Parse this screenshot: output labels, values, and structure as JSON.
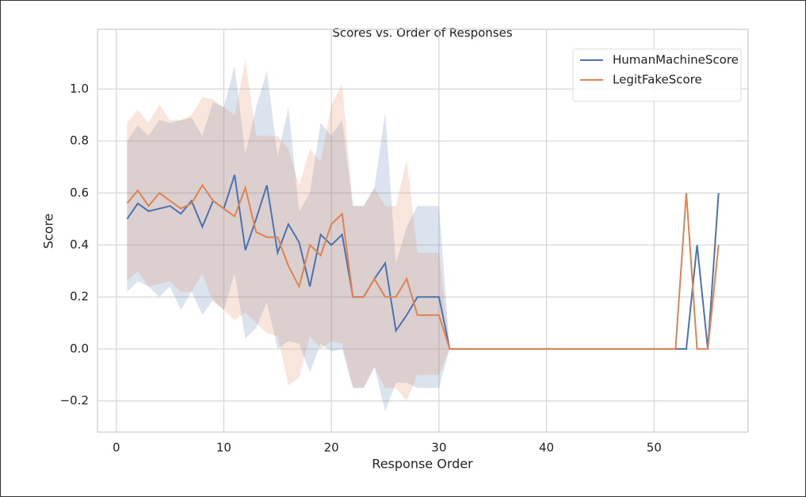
{
  "chart_data": {
    "type": "line",
    "title": "Scores vs. Order of Responses",
    "xlabel": "Response Order",
    "ylabel": "Score",
    "x": [
      1,
      2,
      3,
      4,
      5,
      6,
      7,
      8,
      9,
      10,
      11,
      12,
      13,
      14,
      15,
      16,
      17,
      18,
      19,
      20,
      21,
      22,
      23,
      24,
      25,
      26,
      27,
      28,
      29,
      30,
      31,
      32,
      33,
      34,
      35,
      36,
      37,
      38,
      39,
      40,
      41,
      42,
      43,
      44,
      45,
      46,
      47,
      48,
      49,
      50,
      51,
      52,
      53,
      54,
      55,
      56
    ],
    "series": [
      {
        "name": "HumanMachineScore",
        "color": "#4c72b0",
        "values": [
          0.5,
          0.56,
          0.53,
          0.54,
          0.55,
          0.52,
          0.57,
          0.47,
          0.57,
          0.54,
          0.67,
          0.38,
          0.5,
          0.63,
          0.37,
          0.48,
          0.41,
          0.24,
          0.44,
          0.4,
          0.44,
          0.2,
          0.2,
          0.27,
          0.33,
          0.07,
          0.13,
          0.2,
          0.2,
          0.2,
          0,
          0,
          0,
          0,
          0,
          0,
          0,
          0,
          0,
          0,
          0,
          0,
          0,
          0,
          0,
          0,
          0,
          0,
          0,
          0,
          0,
          0,
          0,
          0.4,
          0,
          0.6
        ],
        "upper": [
          0.8,
          0.86,
          0.82,
          0.88,
          0.87,
          0.88,
          0.89,
          0.82,
          0.95,
          0.93,
          1.09,
          0.75,
          0.93,
          1.07,
          0.74,
          0.93,
          0.53,
          0.6,
          0.87,
          0.82,
          0.88,
          0.55,
          0.55,
          0.62,
          0.91,
          0.33,
          0.47,
          0.55,
          0.55,
          0.55,
          0,
          null,
          null,
          null,
          null,
          null,
          null,
          null,
          null,
          null,
          null,
          null,
          null,
          null,
          null,
          null,
          null,
          null,
          null,
          null,
          null,
          null,
          null,
          null,
          null,
          null
        ],
        "lower": [
          0.22,
          0.26,
          0.24,
          0.2,
          0.24,
          0.15,
          0.22,
          0.13,
          0.19,
          0.15,
          0.29,
          0.04,
          0.08,
          0.18,
          0.0,
          0.03,
          0.02,
          -0.09,
          0.02,
          -0.01,
          0.0,
          -0.15,
          -0.15,
          -0.07,
          -0.24,
          -0.13,
          -0.13,
          -0.15,
          -0.15,
          -0.15,
          0,
          null,
          null,
          null,
          null,
          null,
          null,
          null,
          null,
          null,
          null,
          null,
          null,
          null,
          null,
          null,
          null,
          null,
          null,
          null,
          null,
          null,
          null,
          null,
          null,
          null
        ]
      },
      {
        "name": "LegitFakeScore",
        "color": "#dd8452",
        "values": [
          0.56,
          0.61,
          0.55,
          0.6,
          0.57,
          0.54,
          0.56,
          0.63,
          0.57,
          0.54,
          0.51,
          0.62,
          0.45,
          0.43,
          0.43,
          0.32,
          0.24,
          0.4,
          0.36,
          0.48,
          0.52,
          0.2,
          0.2,
          0.27,
          0.2,
          0.2,
          0.27,
          0.13,
          0.13,
          0.13,
          0,
          0,
          0,
          0,
          0,
          0,
          0,
          0,
          0,
          0,
          0,
          0,
          0,
          0,
          0,
          0,
          0,
          0,
          0,
          0,
          0,
          0,
          0.6,
          0,
          0,
          0.4
        ],
        "upper": [
          0.87,
          0.92,
          0.87,
          0.94,
          0.88,
          0.88,
          0.9,
          0.97,
          0.96,
          0.93,
          0.9,
          1.11,
          0.82,
          0.82,
          0.82,
          0.77,
          0.63,
          0.77,
          0.72,
          0.94,
          1.02,
          0.55,
          0.55,
          0.62,
          0.55,
          0.55,
          0.73,
          0.37,
          0.37,
          0.37,
          0,
          null,
          null,
          null,
          null,
          null,
          null,
          null,
          null,
          null,
          null,
          null,
          null,
          null,
          null,
          null,
          null,
          null,
          null,
          null,
          null,
          null,
          null,
          null,
          null,
          null
        ],
        "lower": [
          0.26,
          0.3,
          0.24,
          0.25,
          0.26,
          0.22,
          0.22,
          0.29,
          0.18,
          0.15,
          0.11,
          0.14,
          0.1,
          0.06,
          0.05,
          -0.14,
          -0.11,
          0.05,
          0.0,
          0.03,
          0.02,
          -0.15,
          -0.15,
          -0.07,
          -0.15,
          -0.15,
          -0.2,
          -0.1,
          -0.1,
          -0.1,
          0,
          null,
          null,
          null,
          null,
          null,
          null,
          null,
          null,
          null,
          null,
          null,
          null,
          null,
          null,
          null,
          null,
          null,
          null,
          null,
          null,
          null,
          null,
          null,
          null,
          null
        ]
      }
    ],
    "xlim": [
      -1.75,
      58.75
    ],
    "xticks": [
      0,
      10,
      20,
      30,
      40,
      50
    ],
    "ylim": [
      -0.32,
      1.23
    ],
    "yticks": [
      {
        "value": -0.2,
        "label": "−0.2"
      },
      {
        "value": 0,
        "label": "0.0"
      },
      {
        "value": 0.2,
        "label": "0.2"
      },
      {
        "value": 0.4,
        "label": "0.4"
      },
      {
        "value": 0.6,
        "label": "0.6"
      },
      {
        "value": 0.8,
        "label": "0.8"
      },
      {
        "value": 1.0,
        "label": "1.0"
      }
    ],
    "grid": true,
    "legend": "upper right"
  }
}
